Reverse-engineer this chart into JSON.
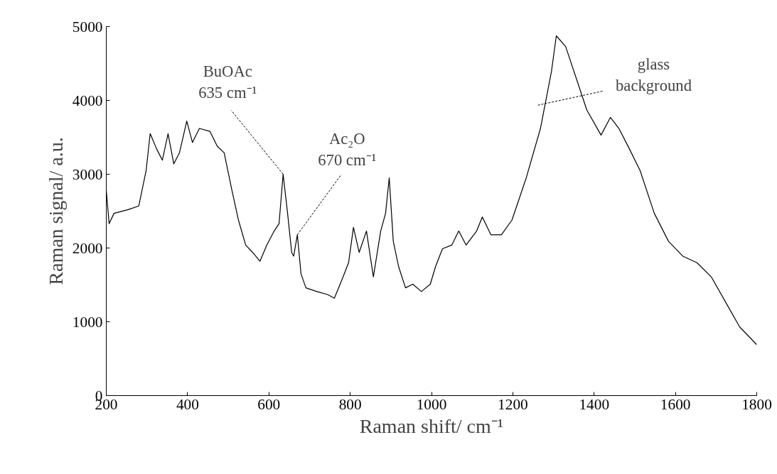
{
  "chart_data": {
    "type": "line",
    "xlabel": "Raman shift/ cm⁻¹",
    "ylabel": "Raman signal/ a.u.",
    "x": [
      200,
      207,
      219,
      254,
      280,
      298,
      308,
      324,
      338,
      352,
      366,
      380,
      398,
      412,
      429,
      455,
      473,
      490,
      508,
      525,
      543,
      560,
      578,
      595,
      613,
      625,
      635,
      646,
      656,
      661,
      670,
      679,
      691,
      718,
      744,
      761,
      779,
      796,
      808,
      822,
      840,
      857,
      875,
      887,
      896,
      906,
      919,
      936,
      954,
      975,
      997,
      1010,
      1027,
      1050,
      1067,
      1085,
      1111,
      1125,
      1146,
      1172,
      1198,
      1233,
      1268,
      1295,
      1307,
      1330,
      1356,
      1382,
      1417,
      1440,
      1461,
      1487,
      1513,
      1548,
      1583,
      1618,
      1653,
      1688,
      1723,
      1758,
      1800
    ],
    "series": [
      {
        "color": "#000000",
        "values": [
          2780,
          2330,
          2470,
          2520,
          2570,
          3050,
          3550,
          3340,
          3190,
          3550,
          3140,
          3290,
          3720,
          3430,
          3620,
          3580,
          3380,
          3290,
          2810,
          2380,
          2040,
          1940,
          1820,
          2040,
          2230,
          2330,
          3000,
          2470,
          1940,
          1890,
          2180,
          1650,
          1460,
          1410,
          1370,
          1320,
          1560,
          1800,
          2280,
          1940,
          2230,
          1610,
          2230,
          2470,
          2950,
          2090,
          1750,
          1460,
          1510,
          1410,
          1510,
          1750,
          1990,
          2040,
          2230,
          2040,
          2230,
          2420,
          2180,
          2180,
          2380,
          2950,
          3620,
          4390,
          4875,
          4730,
          4300,
          3870,
          3530,
          3770,
          3620,
          3340,
          3050,
          2470,
          2090,
          1890,
          1800,
          1610,
          1270,
          930,
          690
        ]
      }
    ],
    "xlim": [
      200,
      1800
    ],
    "xticks": [
      200,
      400,
      600,
      800,
      1000,
      1200,
      1400,
      1600,
      1800
    ],
    "ylim": [
      0,
      5000
    ],
    "yticks": [
      0,
      1000,
      2000,
      3000,
      4000,
      5000
    ],
    "grid": false,
    "annotations": [
      {
        "text": "BuOAc\n635 cm⁻¹",
        "x": 635,
        "y": 3000
      },
      {
        "text": "Ac₂O\n670 cm⁻¹",
        "x": 670,
        "y": 2180
      },
      "glass\nbackground"
    ]
  }
}
